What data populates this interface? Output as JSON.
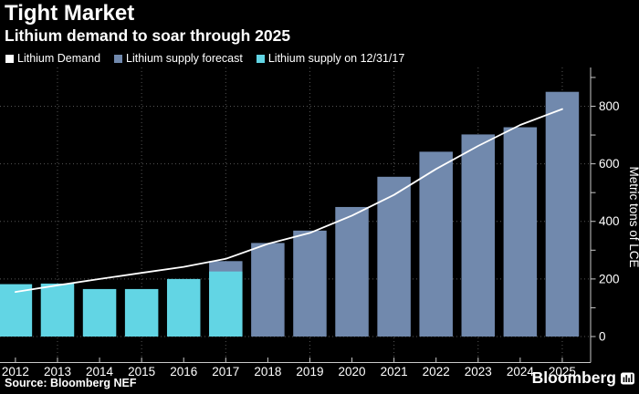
{
  "header": {
    "title": "Tight Market",
    "subtitle": "Lithium demand to soar through 2025"
  },
  "legend": [
    {
      "label": "Lithium Demand",
      "color": "#ffffff"
    },
    {
      "label": "Lithium supply forecast",
      "color": "#7189ad"
    },
    {
      "label": "Lithium supply on 12/31/17",
      "color": "#62d5e4"
    }
  ],
  "source": "Source: Bloomberg NEF",
  "branding": "Bloomberg",
  "colors": {
    "background": "#000000",
    "text": "#ffffff",
    "demand_line": "#ffffff",
    "supply_forecast_bar": "#7189ad",
    "supply_actual_bar": "#62d5e4",
    "gridline": "#555555",
    "axis": "#c9c9c9"
  },
  "chart_data": {
    "type": "bar",
    "title": "Tight Market",
    "subtitle": "Lithium demand to soar through 2025",
    "categories": [
      "2012",
      "2013",
      "2014",
      "2015",
      "2016",
      "2017",
      "2018",
      "2019",
      "2020",
      "2021",
      "2022",
      "2023",
      "2024",
      "2025"
    ],
    "series": [
      {
        "name": "Lithium Demand",
        "type": "line",
        "color": "#ffffff",
        "values": [
          155,
          178,
          200,
          221,
          242,
          270,
          322,
          360,
          420,
          492,
          582,
          662,
          735,
          790
        ]
      },
      {
        "name": "Lithium supply forecast",
        "type": "bar",
        "color": "#7189ad",
        "values": [
          null,
          null,
          null,
          null,
          null,
          262,
          325,
          368,
          450,
          555,
          642,
          702,
          727,
          850
        ]
      },
      {
        "name": "Lithium supply on 12/31/17",
        "type": "bar",
        "color": "#62d5e4",
        "values": [
          182,
          184,
          165,
          165,
          200,
          226,
          null,
          null,
          null,
          null,
          null,
          null,
          null,
          null
        ]
      }
    ],
    "xlabel": "",
    "ylabel": "Metric tons of LCE",
    "yticks": [
      0,
      200,
      400,
      600,
      800
    ],
    "yticks_minor": [
      100,
      300,
      500,
      700,
      900
    ],
    "ylim": [
      0,
      935
    ],
    "y_axis_side": "right",
    "grid": "dotted",
    "gridline_years": [
      "2013",
      "2015",
      "2017",
      "2019",
      "2021",
      "2023",
      "2025"
    ],
    "legend_position": "top"
  }
}
